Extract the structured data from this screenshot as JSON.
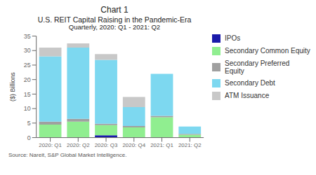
{
  "chart_data": {
    "type": "bar",
    "stacked": true,
    "title": "Chart 1",
    "subtitle": [
      "U.S. REIT Capital Raising in the Pandemic-Era",
      "Quarterly, 2020: Q1 - 2021: Q2"
    ],
    "annotations": [
      "Source: Nareit, S&P Global Market Intelligence."
    ],
    "y_label": "($) Billions",
    "categories": [
      "2020: Q1",
      "2020: Q2",
      "2020: Q3",
      "2020: Q4",
      "2021: Q1",
      "2021: Q2"
    ],
    "series": [
      {
        "name": "IPOs",
        "color": "#1a1aaa",
        "values": [
          0.0,
          0.0,
          0.8,
          0.0,
          0.0,
          0.0
        ]
      },
      {
        "name": "Secondary Common Equity",
        "color": "#90ee90",
        "values": [
          4.5,
          5.5,
          3.5,
          3.5,
          7.0,
          1.0
        ]
      },
      {
        "name": "Secondary Preferred Equity",
        "color": "#a0a0a0",
        "values": [
          1.0,
          1.0,
          0.5,
          0.5,
          0.5,
          0.3
        ]
      },
      {
        "name": "Secondary Debt",
        "color": "#7dd8f0",
        "values": [
          22.5,
          24.5,
          22.0,
          6.5,
          14.5,
          2.5
        ]
      },
      {
        "name": "ATM Issuance",
        "color": "#c8c8c8",
        "values": [
          3.0,
          1.5,
          2.0,
          3.5,
          0.0,
          0.0
        ]
      }
    ],
    "ylim": [
      0,
      35
    ],
    "yticks": [
      0,
      5,
      10,
      15,
      20,
      25,
      30,
      35
    ],
    "grid": false,
    "legend": "right"
  }
}
